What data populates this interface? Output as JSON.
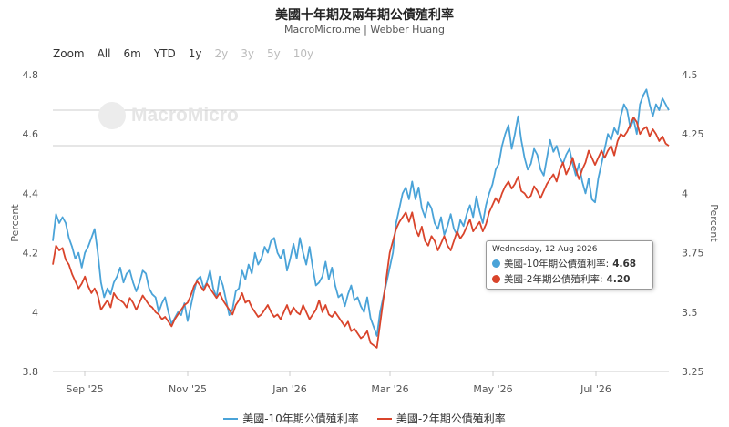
{
  "title": "美國十年期及兩年期公債殖利率",
  "subtitle": "MacroMicro.me | Webber Huang",
  "watermark": "MacroMicro",
  "range_selector": {
    "label": "Zoom",
    "buttons": [
      {
        "label": "All",
        "enabled": true
      },
      {
        "label": "6m",
        "enabled": true
      },
      {
        "label": "YTD",
        "enabled": true
      },
      {
        "label": "1y",
        "enabled": true
      },
      {
        "label": "2y",
        "enabled": false
      },
      {
        "label": "3y",
        "enabled": false
      },
      {
        "label": "5y",
        "enabled": false
      },
      {
        "label": "10y",
        "enabled": false
      }
    ]
  },
  "tooltip": {
    "date": "Wednesday, 12 Aug 2026",
    "rows": [
      {
        "name": "美國-10年期公債殖利率",
        "value": "4.68",
        "color": "#4aa3d8"
      },
      {
        "name": "美國-2年期公債殖利率",
        "value": "4.20",
        "color": "#d9442b"
      }
    ]
  },
  "chart_data": {
    "type": "line",
    "x_ticks": [
      "Sep '25",
      "Nov '25",
      "Jan '26",
      "Mar '26",
      "May '26",
      "Jul '26"
    ],
    "y_left": {
      "label": "Percent",
      "ticks": [
        "3.8",
        "4",
        "4.2",
        "4.4",
        "4.6",
        "4.8"
      ],
      "range": [
        3.8,
        4.8
      ]
    },
    "y_right": {
      "label": "Percent",
      "ticks": [
        "3.25",
        "3.5",
        "3.75",
        "4",
        "4.25",
        "4.5"
      ],
      "range": [
        3.25,
        4.5
      ]
    },
    "grid": false,
    "legend_placement": "bottom",
    "series": [
      {
        "name": "美國-10年期公債殖利率",
        "axis": "left",
        "color": "#4aa3d8",
        "values": [
          4.24,
          4.33,
          4.3,
          4.32,
          4.3,
          4.25,
          4.22,
          4.18,
          4.2,
          4.15,
          4.2,
          4.22,
          4.25,
          4.28,
          4.2,
          4.1,
          4.05,
          4.08,
          4.06,
          4.1,
          4.12,
          4.15,
          4.1,
          4.13,
          4.14,
          4.1,
          4.07,
          4.1,
          4.14,
          4.13,
          4.08,
          4.06,
          4.05,
          4.0,
          4.03,
          4.05,
          4.0,
          3.96,
          3.98,
          4.0,
          3.99,
          4.03,
          3.97,
          4.02,
          4.07,
          4.11,
          4.12,
          4.08,
          4.1,
          4.14,
          4.08,
          4.05,
          4.12,
          4.09,
          4.04,
          3.99,
          4.01,
          4.07,
          4.08,
          4.14,
          4.11,
          4.16,
          4.13,
          4.2,
          4.16,
          4.18,
          4.22,
          4.2,
          4.24,
          4.25,
          4.2,
          4.18,
          4.21,
          4.14,
          4.18,
          4.23,
          4.18,
          4.25,
          4.2,
          4.16,
          4.22,
          4.15,
          4.09,
          4.1,
          4.12,
          4.17,
          4.11,
          4.15,
          4.09,
          4.05,
          4.06,
          4.02,
          4.06,
          4.09,
          4.04,
          4.05,
          4.02,
          4.0,
          4.05,
          3.98,
          3.95,
          3.92,
          4.0,
          4.05,
          4.1,
          4.15,
          4.2,
          4.3,
          4.35,
          4.4,
          4.42,
          4.38,
          4.44,
          4.38,
          4.42,
          4.35,
          4.32,
          4.37,
          4.35,
          4.3,
          4.28,
          4.32,
          4.26,
          4.29,
          4.33,
          4.28,
          4.26,
          4.31,
          4.29,
          4.33,
          4.36,
          4.32,
          4.39,
          4.34,
          4.3,
          4.36,
          4.4,
          4.43,
          4.48,
          4.5,
          4.56,
          4.6,
          4.63,
          4.55,
          4.6,
          4.66,
          4.58,
          4.52,
          4.48,
          4.5,
          4.55,
          4.53,
          4.48,
          4.46,
          4.52,
          4.58,
          4.54,
          4.56,
          4.52,
          4.5,
          4.53,
          4.55,
          4.5,
          4.46,
          4.5,
          4.44,
          4.4,
          4.45,
          4.38,
          4.37,
          4.45,
          4.5,
          4.55,
          4.6,
          4.58,
          4.62,
          4.6,
          4.66,
          4.7,
          4.68,
          4.62,
          4.65,
          4.6,
          4.7,
          4.73,
          4.75,
          4.7,
          4.66,
          4.7,
          4.68,
          4.72,
          4.7,
          4.68
        ]
      },
      {
        "name": "美國-2年期公債殖利率",
        "axis": "right",
        "color": "#d9442b",
        "values": [
          3.7,
          3.78,
          3.76,
          3.77,
          3.72,
          3.7,
          3.66,
          3.63,
          3.6,
          3.62,
          3.65,
          3.61,
          3.58,
          3.6,
          3.57,
          3.51,
          3.53,
          3.55,
          3.52,
          3.58,
          3.56,
          3.55,
          3.54,
          3.52,
          3.56,
          3.54,
          3.51,
          3.54,
          3.57,
          3.55,
          3.53,
          3.52,
          3.5,
          3.49,
          3.47,
          3.48,
          3.46,
          3.44,
          3.47,
          3.49,
          3.51,
          3.53,
          3.54,
          3.57,
          3.61,
          3.63,
          3.61,
          3.59,
          3.62,
          3.6,
          3.58,
          3.56,
          3.58,
          3.55,
          3.53,
          3.51,
          3.49,
          3.53,
          3.55,
          3.58,
          3.54,
          3.55,
          3.52,
          3.5,
          3.48,
          3.49,
          3.51,
          3.53,
          3.5,
          3.48,
          3.49,
          3.47,
          3.5,
          3.53,
          3.49,
          3.52,
          3.5,
          3.49,
          3.53,
          3.5,
          3.47,
          3.49,
          3.51,
          3.55,
          3.5,
          3.53,
          3.49,
          3.48,
          3.5,
          3.48,
          3.46,
          3.44,
          3.46,
          3.42,
          3.43,
          3.41,
          3.39,
          3.4,
          3.42,
          3.37,
          3.36,
          3.35,
          3.45,
          3.55,
          3.65,
          3.75,
          3.8,
          3.85,
          3.88,
          3.9,
          3.92,
          3.88,
          3.92,
          3.85,
          3.82,
          3.86,
          3.8,
          3.78,
          3.82,
          3.8,
          3.76,
          3.79,
          3.82,
          3.78,
          3.76,
          3.8,
          3.84,
          3.81,
          3.83,
          3.86,
          3.89,
          3.84,
          3.86,
          3.88,
          3.84,
          3.87,
          3.92,
          3.95,
          3.98,
          3.96,
          4.0,
          4.03,
          4.05,
          4.02,
          4.04,
          4.07,
          4.01,
          4.0,
          3.98,
          3.99,
          4.03,
          4.01,
          3.98,
          4.01,
          4.04,
          4.06,
          4.08,
          4.05,
          4.1,
          4.13,
          4.08,
          4.11,
          4.15,
          4.1,
          4.06,
          4.1,
          4.13,
          4.18,
          4.15,
          4.12,
          4.15,
          4.18,
          4.15,
          4.18,
          4.2,
          4.16,
          4.22,
          4.25,
          4.24,
          4.26,
          4.29,
          4.32,
          4.3,
          4.25,
          4.27,
          4.28,
          4.24,
          4.27,
          4.25,
          4.22,
          4.24,
          4.21,
          4.2
        ]
      }
    ]
  }
}
